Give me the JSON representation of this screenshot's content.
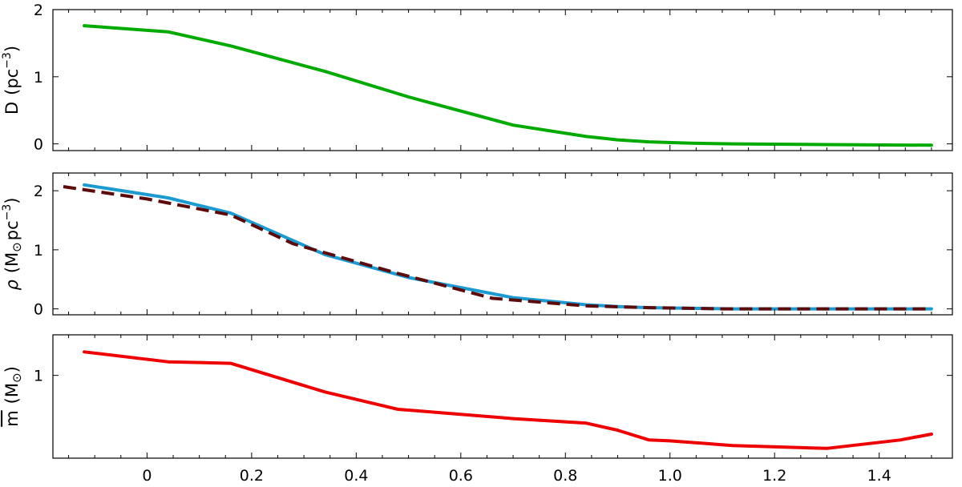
{
  "chart_data": [
    {
      "type": "line",
      "ylabel_text": "D",
      "ylabel_unit": "(pc",
      "ylabel_sup": "−3",
      "ylabel_close": ")",
      "ylim": [
        -0.1,
        2.0
      ],
      "yticks": [
        0,
        1,
        2
      ],
      "ytick_labels": [
        "0",
        "1",
        "2"
      ],
      "series": [
        {
          "color": "#00aa00",
          "dash": false,
          "x": [
            -0.12,
            0.04,
            0.16,
            0.34,
            0.5,
            0.7,
            0.84,
            0.9,
            0.96,
            1.04,
            1.12,
            1.3,
            1.5
          ],
          "y": [
            1.76,
            1.67,
            1.46,
            1.08,
            0.7,
            0.28,
            0.11,
            0.06,
            0.03,
            0.01,
            0.0,
            -0.01,
            -0.02
          ]
        }
      ]
    },
    {
      "type": "line",
      "ylabel_text": "ρ",
      "ylabel_unit": "(M",
      "ylabel_sub": "⊙",
      "ylabel_unit2": "pc",
      "ylabel_sup": "−3",
      "ylabel_close": ")",
      "ylim": [
        -0.1,
        2.3
      ],
      "yticks": [
        0,
        1,
        2
      ],
      "ytick_labels": [
        "0",
        "1",
        "2"
      ],
      "series": [
        {
          "color": "#1b9bd1",
          "dash": false,
          "x": [
            -0.12,
            0.04,
            0.16,
            0.34,
            0.5,
            0.7,
            0.84,
            0.9,
            0.96,
            1.04,
            1.12,
            1.3,
            1.5
          ],
          "y": [
            2.1,
            1.88,
            1.62,
            0.92,
            0.53,
            0.19,
            0.07,
            0.04,
            0.02,
            0.01,
            0.0,
            0.0,
            0.0
          ]
        },
        {
          "color": "#5c0a0a",
          "dash": true,
          "x": [
            -0.16,
            0.0,
            0.16,
            0.28,
            0.48,
            0.66,
            0.84,
            0.96,
            1.1,
            1.3,
            1.5
          ],
          "y": [
            2.07,
            1.86,
            1.59,
            1.1,
            0.6,
            0.18,
            0.05,
            0.02,
            0.0,
            0.0,
            0.0
          ]
        }
      ]
    },
    {
      "type": "line",
      "ylabel_text": "m",
      "ylabel_unit": "(M",
      "ylabel_sub": "⊙",
      "ylabel_close": ")",
      "yscale": "log",
      "ylim": [
        0.27,
        1.9
      ],
      "yticks": [
        1
      ],
      "ytick_labels": [
        "1"
      ],
      "series": [
        {
          "color": "#ee0000",
          "dash": false,
          "x": [
            -0.12,
            0.04,
            0.16,
            0.34,
            0.48,
            0.7,
            0.84,
            0.9,
            0.96,
            1.0,
            1.12,
            1.3,
            1.44,
            1.5
          ],
          "y": [
            1.45,
            1.24,
            1.21,
            0.77,
            0.585,
            0.505,
            0.47,
            0.42,
            0.36,
            0.355,
            0.33,
            0.315,
            0.36,
            0.395
          ]
        }
      ]
    }
  ],
  "x_axis": {
    "xlim": [
      -0.18,
      1.54
    ],
    "xticks": [
      0,
      0.2,
      0.4,
      0.6,
      0.8,
      1.0,
      1.2,
      1.4
    ],
    "xtick_labels": [
      "0",
      "0.2",
      "0.4",
      "0.6",
      "0.8",
      "1.0",
      "1.2",
      "1.4"
    ],
    "minor_step": 0.05
  }
}
